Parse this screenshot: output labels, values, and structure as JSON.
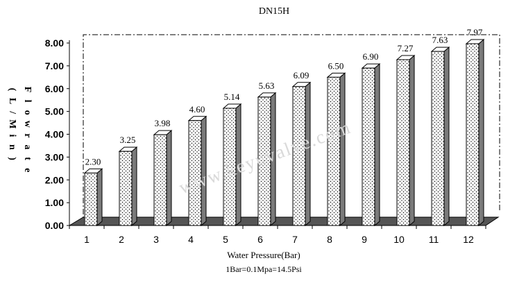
{
  "chart_data": {
    "type": "bar",
    "title": "DN15H",
    "xlabel": "Water Pressure(Bar)",
    "xlabel_note": "1Bar=0.1Mpa=14.5Psi",
    "ylabel_left": "(L/Min)",
    "ylabel_right": "Flowrate",
    "categories": [
      "1",
      "2",
      "3",
      "4",
      "5",
      "6",
      "7",
      "8",
      "9",
      "10",
      "11",
      "12"
    ],
    "values": [
      2.3,
      3.25,
      3.98,
      4.6,
      5.14,
      5.63,
      6.09,
      6.5,
      6.9,
      7.27,
      7.63,
      7.97
    ],
    "value_labels": [
      "2.30",
      "3.25",
      "3.98",
      "4.60",
      "5.14",
      "5.63",
      "6.09",
      "6.50",
      "6.90",
      "7.27",
      "7.63",
      "7.97"
    ],
    "ylim": [
      0,
      8
    ],
    "yticks": [
      "0.00",
      "1.00",
      "2.00",
      "3.00",
      "4.00",
      "5.00",
      "6.00",
      "7.00",
      "8.00"
    ],
    "grid": false,
    "style": "3d-bar-dotted",
    "watermark": "www.keyuvalve.com",
    "colors": {
      "bar_fill": "#ffffff",
      "bar_dots": "#000000",
      "bar_shade": "#7a7a7a",
      "floor": "#555555"
    }
  }
}
